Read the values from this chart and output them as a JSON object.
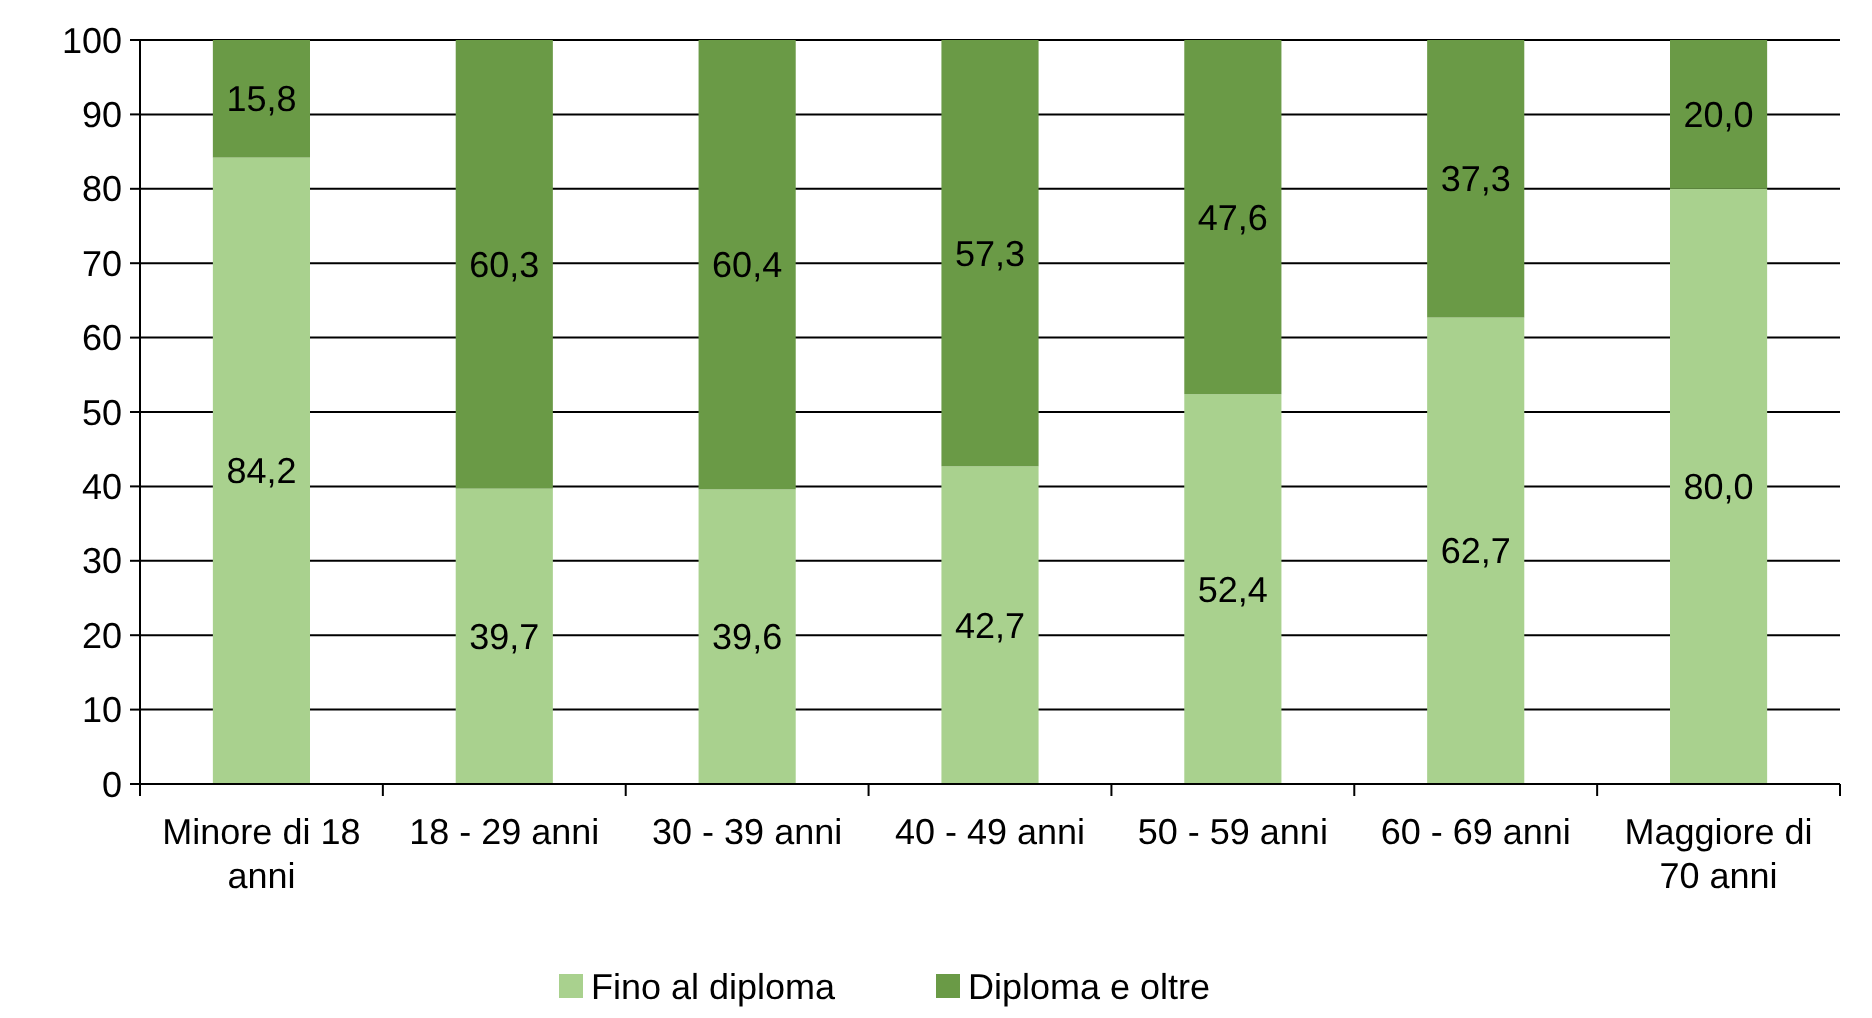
{
  "chart_data": {
    "type": "bar",
    "stacked": true,
    "categories": [
      "Minore di 18 anni",
      "18 - 29 anni",
      "30 - 39 anni",
      "40 - 49 anni",
      "50 - 59 anni",
      "60 - 69 anni",
      "Maggiore di 70 anni"
    ],
    "series": [
      {
        "name": "Fino al diploma",
        "color": "#a9d18e",
        "values": [
          84.2,
          39.7,
          39.6,
          42.7,
          52.4,
          62.7,
          80.0
        ]
      },
      {
        "name": "Diploma e oltre",
        "color": "#6a9a46",
        "values": [
          15.8,
          60.3,
          60.4,
          57.3,
          47.6,
          37.3,
          20.0
        ]
      }
    ],
    "value_labels": [
      [
        "84,2",
        "39,7",
        "39,6",
        "42,7",
        "52,4",
        "62,7",
        "80,0"
      ],
      [
        "15,8",
        "60,3",
        "60,4",
        "57,3",
        "47,6",
        "37,3",
        "20,0"
      ]
    ],
    "ylim": [
      0,
      100
    ],
    "yticks": [
      0,
      10,
      20,
      30,
      40,
      50,
      60,
      70,
      80,
      90,
      100
    ],
    "grid": "y",
    "legend": "bottom"
  }
}
